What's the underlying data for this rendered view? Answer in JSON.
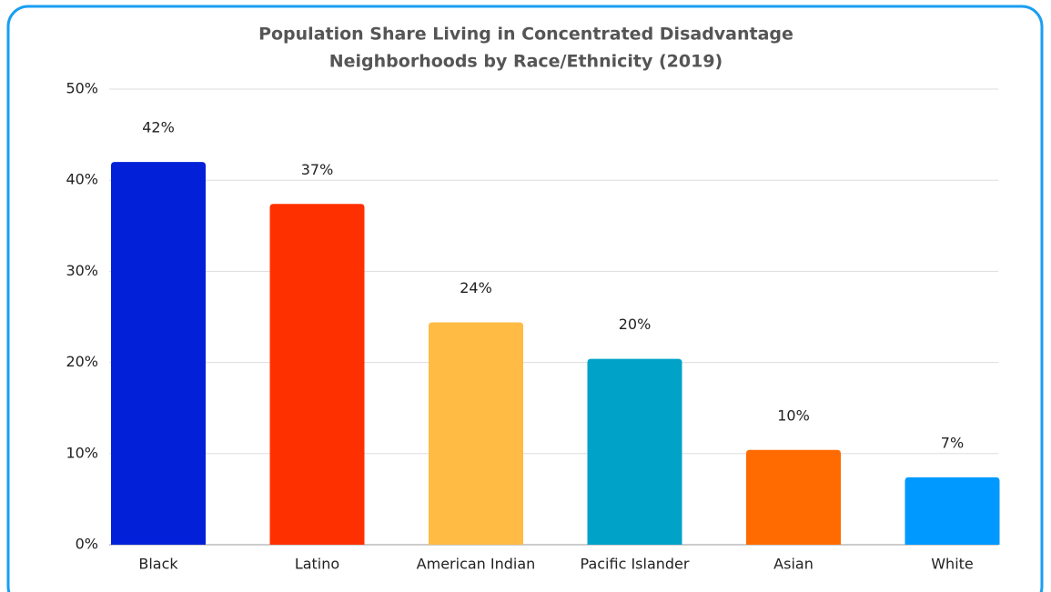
{
  "chart_data": {
    "type": "bar",
    "title": [
      "Population Share Living in Concentrated Disadvantage",
      "Neighborhoods by Race/Ethnicity (2019)"
    ],
    "categories": [
      "Black",
      "Latino",
      "American Indian",
      "Pacific Islander",
      "Asian",
      "White"
    ],
    "values": [
      42,
      37.4,
      24.4,
      20.4,
      10.4,
      7.4
    ],
    "value_labels": [
      "42%",
      "37%",
      "24%",
      "20%",
      "10%",
      "7%"
    ],
    "colors": [
      "#0320d9",
      "#ff3000",
      "#ffbb44",
      "#00a2c8",
      "#ff6b00",
      "#0099ff"
    ],
    "ylim": [
      0,
      50
    ],
    "yticks": [
      {
        "value": 0,
        "label": "0%"
      },
      {
        "value": 10,
        "label": "10%"
      },
      {
        "value": 20,
        "label": "20%"
      },
      {
        "value": 30,
        "label": "30%"
      },
      {
        "value": 40,
        "label": "40%"
      },
      {
        "value": 50,
        "label": "50%"
      }
    ],
    "grid": true
  }
}
